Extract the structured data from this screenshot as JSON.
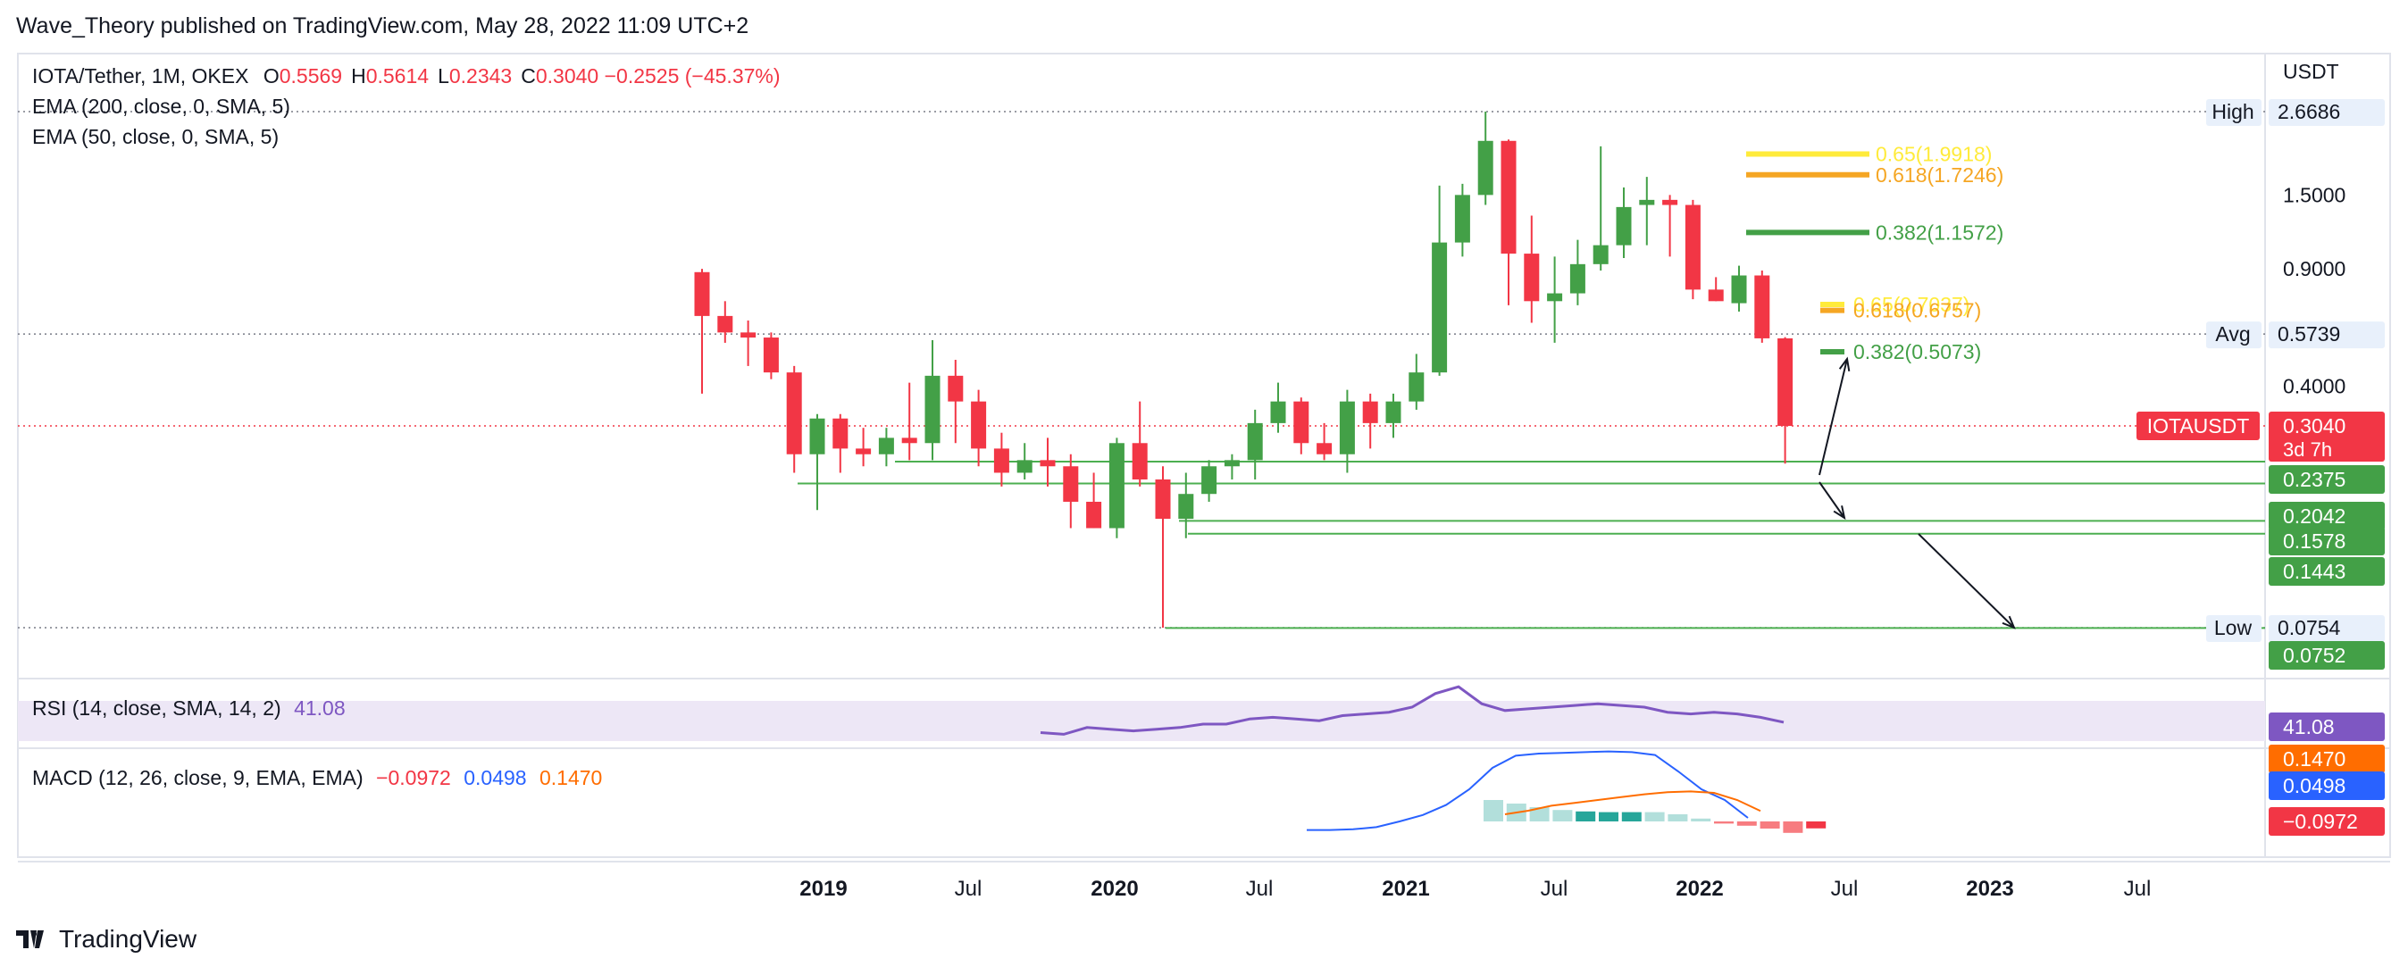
{
  "header": {
    "publisher_line": "Wave_Theory published on TradingView.com, May 28, 2022 11:09 UTC+2"
  },
  "legend": {
    "symbol": "IOTA/Tether, 1M, OKEX",
    "ohlc": [
      {
        "k": "O",
        "v": "0.5569"
      },
      {
        "k": "H",
        "v": "0.5614"
      },
      {
        "k": "L",
        "v": "0.2343"
      },
      {
        "k": "C",
        "v": "0.3040"
      }
    ],
    "change": "−0.2525 (−45.37%)",
    "ema200": "EMA (200, close, 0, SMA, 5)",
    "ema50": "EMA (50, close, 0, SMA, 5)"
  },
  "rsi": {
    "label": "RSI (14, close, SMA, 14, 2)",
    "value": "41.08"
  },
  "macd": {
    "label": "MACD (12, 26, close, 9, EMA, EMA)",
    "v1": "−0.0972",
    "v2": "0.0498",
    "v3": "0.1470"
  },
  "footer": {
    "brand": "TradingView"
  },
  "colors": {
    "up": "#43a047",
    "down": "#f23645",
    "fib_orange": "#f5a623",
    "fib_yellow": "#ffeb3b",
    "rsi": "#7e57c2",
    "macd_blue": "#2962ff",
    "macd_orange": "#ff6d00",
    "hline": "#4caf50"
  },
  "chart_data": {
    "type": "candlestick",
    "symbol": "IOTAUSDT",
    "currency": "USDT",
    "timeframe": "1M",
    "scale": "log",
    "price_axis_ticks": [
      "2.6686",
      "1.5000",
      "0.9000",
      "0.4000"
    ],
    "time_axis_labels": [
      {
        "t": "2019",
        "bold": true
      },
      {
        "t": "Jul",
        "bold": false
      },
      {
        "t": "2020",
        "bold": true
      },
      {
        "t": "Jul",
        "bold": false
      },
      {
        "t": "2021",
        "bold": true
      },
      {
        "t": "Jul",
        "bold": false
      },
      {
        "t": "2022",
        "bold": true
      },
      {
        "t": "Jul",
        "bold": false
      },
      {
        "t": "2023",
        "bold": true
      },
      {
        "t": "Jul",
        "bold": false
      }
    ],
    "candles": [
      {
        "o": 0.88,
        "h": 0.9,
        "l": 0.38,
        "c": 0.65
      },
      {
        "o": 0.65,
        "h": 0.72,
        "l": 0.54,
        "c": 0.58
      },
      {
        "o": 0.58,
        "h": 0.63,
        "l": 0.46,
        "c": 0.56
      },
      {
        "o": 0.56,
        "h": 0.58,
        "l": 0.42,
        "c": 0.44
      },
      {
        "o": 0.44,
        "h": 0.46,
        "l": 0.22,
        "c": 0.25
      },
      {
        "o": 0.25,
        "h": 0.33,
        "l": 0.17,
        "c": 0.32
      },
      {
        "o": 0.32,
        "h": 0.33,
        "l": 0.22,
        "c": 0.26
      },
      {
        "o": 0.26,
        "h": 0.3,
        "l": 0.23,
        "c": 0.25
      },
      {
        "o": 0.25,
        "h": 0.3,
        "l": 0.23,
        "c": 0.28
      },
      {
        "o": 0.28,
        "h": 0.41,
        "l": 0.24,
        "c": 0.27
      },
      {
        "o": 0.27,
        "h": 0.55,
        "l": 0.24,
        "c": 0.43
      },
      {
        "o": 0.43,
        "h": 0.48,
        "l": 0.27,
        "c": 0.36
      },
      {
        "o": 0.36,
        "h": 0.39,
        "l": 0.23,
        "c": 0.26
      },
      {
        "o": 0.26,
        "h": 0.29,
        "l": 0.2,
        "c": 0.22
      },
      {
        "o": 0.22,
        "h": 0.27,
        "l": 0.21,
        "c": 0.24
      },
      {
        "o": 0.24,
        "h": 0.28,
        "l": 0.2,
        "c": 0.23
      },
      {
        "o": 0.23,
        "h": 0.25,
        "l": 0.15,
        "c": 0.18
      },
      {
        "o": 0.18,
        "h": 0.22,
        "l": 0.15,
        "c": 0.15
      },
      {
        "o": 0.15,
        "h": 0.28,
        "l": 0.14,
        "c": 0.27
      },
      {
        "o": 0.27,
        "h": 0.36,
        "l": 0.2,
        "c": 0.21
      },
      {
        "o": 0.21,
        "h": 0.23,
        "l": 0.0754,
        "c": 0.16
      },
      {
        "o": 0.16,
        "h": 0.22,
        "l": 0.14,
        "c": 0.19
      },
      {
        "o": 0.19,
        "h": 0.24,
        "l": 0.18,
        "c": 0.23
      },
      {
        "o": 0.23,
        "h": 0.25,
        "l": 0.21,
        "c": 0.24
      },
      {
        "o": 0.24,
        "h": 0.34,
        "l": 0.21,
        "c": 0.31
      },
      {
        "o": 0.31,
        "h": 0.41,
        "l": 0.29,
        "c": 0.36
      },
      {
        "o": 0.36,
        "h": 0.37,
        "l": 0.25,
        "c": 0.27
      },
      {
        "o": 0.27,
        "h": 0.31,
        "l": 0.24,
        "c": 0.25
      },
      {
        "o": 0.25,
        "h": 0.39,
        "l": 0.22,
        "c": 0.36
      },
      {
        "o": 0.36,
        "h": 0.38,
        "l": 0.26,
        "c": 0.31
      },
      {
        "o": 0.31,
        "h": 0.38,
        "l": 0.28,
        "c": 0.36
      },
      {
        "o": 0.36,
        "h": 0.5,
        "l": 0.34,
        "c": 0.44
      },
      {
        "o": 0.44,
        "h": 1.6,
        "l": 0.43,
        "c": 1.08
      },
      {
        "o": 1.08,
        "h": 1.62,
        "l": 0.98,
        "c": 1.5
      },
      {
        "o": 1.5,
        "h": 2.6686,
        "l": 1.4,
        "c": 2.18
      },
      {
        "o": 2.18,
        "h": 2.2,
        "l": 0.7,
        "c": 1.0
      },
      {
        "o": 1.0,
        "h": 1.3,
        "l": 0.62,
        "c": 0.72
      },
      {
        "o": 0.72,
        "h": 0.98,
        "l": 0.54,
        "c": 0.76
      },
      {
        "o": 0.76,
        "h": 1.1,
        "l": 0.7,
        "c": 0.93
      },
      {
        "o": 0.93,
        "h": 2.1,
        "l": 0.89,
        "c": 1.06
      },
      {
        "o": 1.06,
        "h": 1.58,
        "l": 0.97,
        "c": 1.38
      },
      {
        "o": 1.4,
        "h": 1.7,
        "l": 1.06,
        "c": 1.45
      },
      {
        "o": 1.45,
        "h": 1.5,
        "l": 0.98,
        "c": 1.4
      },
      {
        "o": 1.4,
        "h": 1.45,
        "l": 0.73,
        "c": 0.78
      },
      {
        "o": 0.78,
        "h": 0.85,
        "l": 0.72,
        "c": 0.72
      },
      {
        "o": 0.71,
        "h": 0.92,
        "l": 0.67,
        "c": 0.86
      },
      {
        "o": 0.86,
        "h": 0.89,
        "l": 0.54,
        "c": 0.5569
      },
      {
        "o": 0.5569,
        "h": 0.5614,
        "l": 0.2343,
        "c": 0.304
      }
    ],
    "horizontal_levels": [
      {
        "price": 2.6686,
        "label": "High",
        "style": "dotted"
      },
      {
        "price": 0.5739,
        "label": "Avg",
        "style": "dotted"
      },
      {
        "price": 0.304,
        "label": "IOTAUSDT",
        "style": "dotted-red",
        "countdown": "3d 7h"
      },
      {
        "price": 0.2375,
        "style": "support"
      },
      {
        "price": 0.2042,
        "style": "support"
      },
      {
        "price": 0.1578,
        "style": "support"
      },
      {
        "price": 0.1443,
        "style": "support"
      },
      {
        "price": 0.0754,
        "label": "Low",
        "style": "dotted"
      },
      {
        "price": 0.0752,
        "style": "support"
      }
    ],
    "fib_levels": [
      {
        "label": "0.65(1.9918)",
        "price": 1.99,
        "color": "#ffeb3b"
      },
      {
        "label": "0.618(1.7246)",
        "price": 1.7246,
        "color": "#f5a623"
      },
      {
        "label": "0.382(1.1572)",
        "price": 1.1572,
        "color": "#43a047"
      },
      {
        "label": "0.65(0.7037)",
        "price": 0.7037,
        "color": "#ffeb3b"
      },
      {
        "label": "0.618(0.6757)",
        "price": 0.6757,
        "color": "#f5a623"
      },
      {
        "label": "0.382(0.5073)",
        "price": 0.5073,
        "color": "#43a047"
      }
    ],
    "rsi_values": [
      35,
      34,
      38,
      37,
      36,
      37,
      38,
      40,
      40,
      43,
      44,
      43,
      42,
      45,
      46,
      47,
      50,
      58,
      62,
      52,
      48,
      49,
      50,
      51,
      52,
      51,
      50,
      47,
      46,
      47,
      46,
      44,
      41.08
    ],
    "macd": {
      "macd_values": [
        -0.12,
        -0.12,
        -0.11,
        -0.08,
        0.0,
        0.09,
        0.23,
        0.45,
        0.75,
        0.92,
        0.95,
        0.96,
        0.97,
        0.98,
        0.97,
        0.93,
        0.7,
        0.45,
        0.3,
        0.0498
      ],
      "signal_values": [
        0.1,
        0.15,
        0.22,
        0.26,
        0.3,
        0.34,
        0.38,
        0.41,
        0.42,
        0.4,
        0.3,
        0.147
      ],
      "histogram": [
        0.3,
        0.25,
        0.2,
        0.16,
        0.14,
        0.13,
        0.13,
        0.13,
        0.1,
        0.04,
        -0.03,
        -0.06,
        -0.1,
        -0.16,
        -0.0972
      ]
    }
  }
}
